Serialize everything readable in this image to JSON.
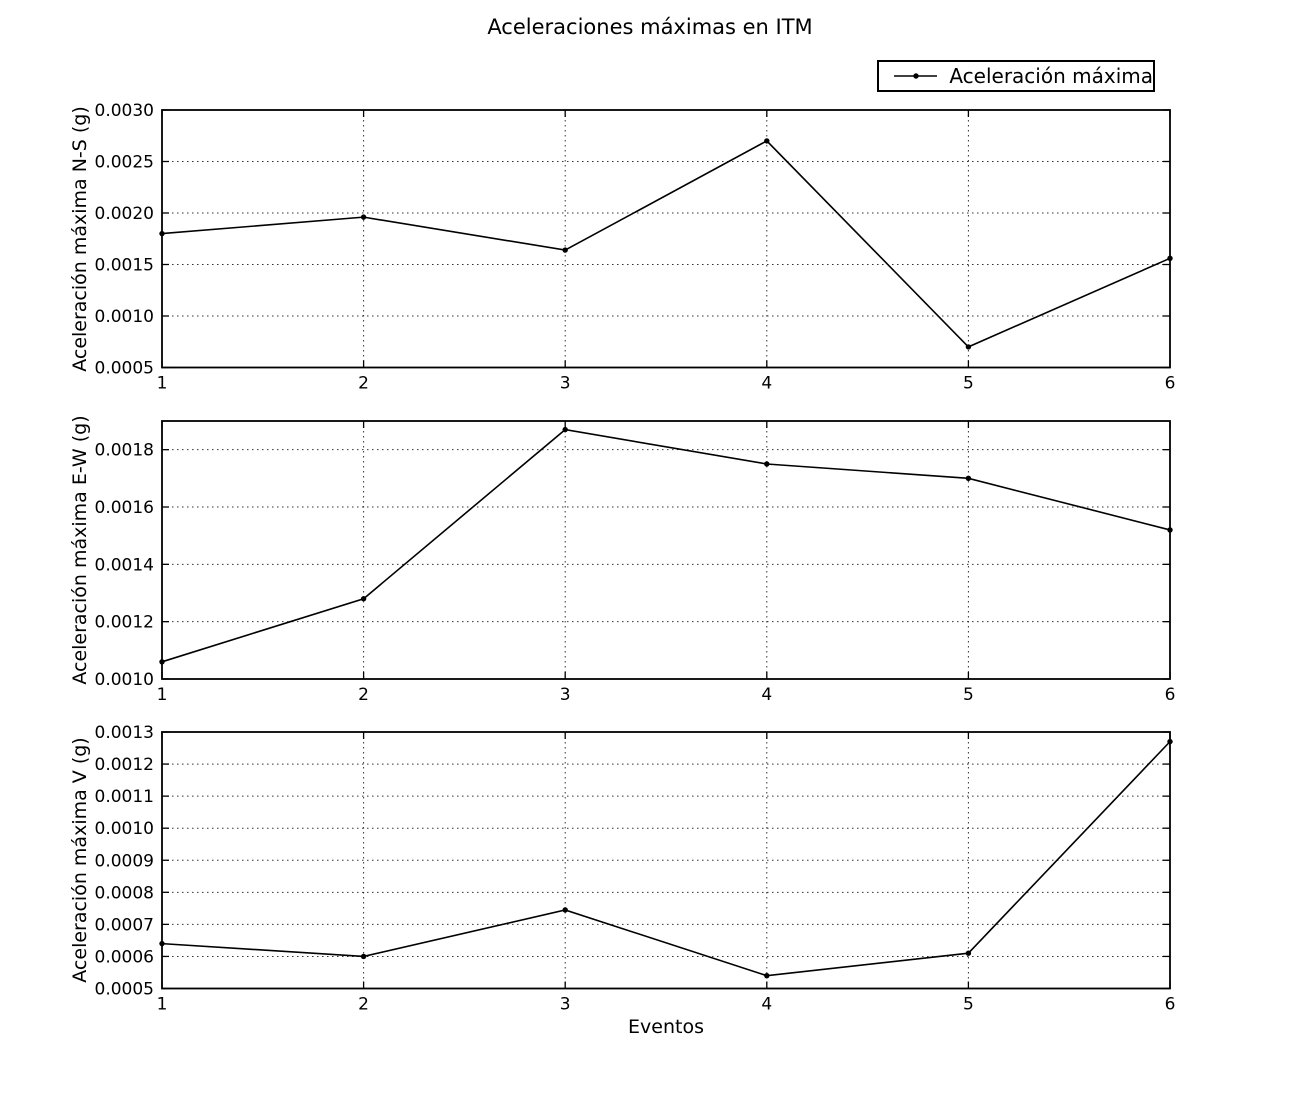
{
  "title": "Aceleraciones máximas en ITM",
  "xlabel": "Eventos",
  "legend": {
    "label": "Aceleración máxima"
  },
  "colors": {
    "line": "#000000",
    "grid": "#000000",
    "text": "#000000",
    "background": "#ffffff"
  },
  "chart_data": [
    {
      "type": "line",
      "name": "ns",
      "series_name": "Aceleración máxima",
      "ylabel": "Aceleración máxima N-S (g)",
      "x": [
        1,
        2,
        3,
        4,
        5,
        6
      ],
      "values": [
        0.0018,
        0.00196,
        0.00164,
        0.0027,
        0.0007,
        0.00156
      ],
      "xlim": [
        1,
        6
      ],
      "xticks": [
        1,
        2,
        3,
        4,
        5,
        6
      ],
      "ylim": [
        0.0005,
        0.003
      ],
      "yticks": [
        0.0005,
        0.001,
        0.0015,
        0.002,
        0.0025,
        0.003
      ],
      "grid": true
    },
    {
      "type": "line",
      "name": "ew",
      "series_name": "Aceleración máxima",
      "ylabel": "Aceleración máxima E-W (g)",
      "x": [
        1,
        2,
        3,
        4,
        5,
        6
      ],
      "values": [
        0.00106,
        0.00128,
        0.00187,
        0.00175,
        0.0017,
        0.00152
      ],
      "xlim": [
        1,
        6
      ],
      "xticks": [
        1,
        2,
        3,
        4,
        5,
        6
      ],
      "ylim": [
        0.001,
        0.0019
      ],
      "yticks": [
        0.001,
        0.0012,
        0.0014,
        0.0016,
        0.0018
      ],
      "grid": true
    },
    {
      "type": "line",
      "name": "v",
      "series_name": "Aceleración máxima",
      "ylabel": "Aceleración máxima V (g)",
      "x": [
        1,
        2,
        3,
        4,
        5,
        6
      ],
      "values": [
        0.00064,
        0.0006,
        0.000745,
        0.00054,
        0.00061,
        0.00127
      ],
      "xlim": [
        1,
        6
      ],
      "xticks": [
        1,
        2,
        3,
        4,
        5,
        6
      ],
      "ylim": [
        0.0005,
        0.0013
      ],
      "yticks": [
        0.0005,
        0.0006,
        0.0007,
        0.0008,
        0.0009,
        0.001,
        0.0011,
        0.0012,
        0.0013
      ],
      "grid": true
    }
  ]
}
